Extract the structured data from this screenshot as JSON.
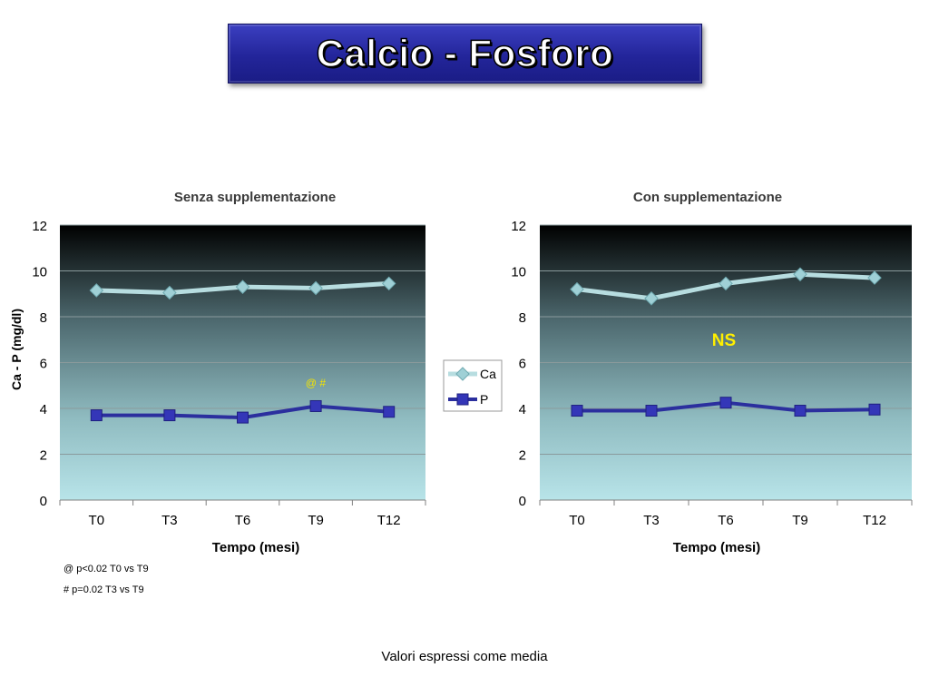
{
  "slide": {
    "title": "Calcio - Fosforo",
    "footnotes": [
      "@ p<0.02 T0 vs T9",
      "# p=0.02 T3 vs T9"
    ],
    "caption": "Valori espressi come media"
  },
  "chart_data": [
    {
      "type": "line",
      "title": "Senza supplementazione",
      "xlabel": "Tempo (mesi)",
      "ylabel": "Ca - P (mg/dl)",
      "categories": [
        "T0",
        "T3",
        "T6",
        "T9",
        "T12"
      ],
      "ylim": [
        0,
        12
      ],
      "yticks": [
        "0",
        "2",
        "4",
        "6",
        "8",
        "10",
        "12"
      ],
      "grid": true,
      "annotation": "@ #",
      "series": [
        {
          "name": "Ca",
          "values": [
            9.15,
            9.05,
            9.3,
            9.25,
            9.45
          ]
        },
        {
          "name": "P",
          "values": [
            3.7,
            3.7,
            3.6,
            4.1,
            3.85
          ]
        }
      ]
    },
    {
      "type": "line",
      "title": "Con supplementazione",
      "xlabel": "Tempo (mesi)",
      "ylabel": "",
      "categories": [
        "T0",
        "T3",
        "T6",
        "T9",
        "T12"
      ],
      "ylim": [
        0,
        12
      ],
      "yticks": [
        "0",
        "2",
        "4",
        "6",
        "8",
        "10",
        "12"
      ],
      "grid": true,
      "annotation": "NS",
      "series": [
        {
          "name": "Ca",
          "values": [
            9.2,
            8.8,
            9.45,
            9.85,
            9.7
          ]
        },
        {
          "name": "P",
          "values": [
            3.9,
            3.9,
            4.25,
            3.9,
            3.95
          ]
        }
      ]
    }
  ],
  "legend": {
    "placement": "between-charts",
    "items": [
      "Ca",
      "P"
    ]
  },
  "colors": {
    "title_bg": "#23259a",
    "ca_line": "#b7dde0",
    "ca_marker": "#9fd0d6",
    "p_line": "#2b2f9e",
    "p_marker": "#3436b8",
    "annotation_left": "#f4e400",
    "annotation_right": "#ffef00"
  }
}
